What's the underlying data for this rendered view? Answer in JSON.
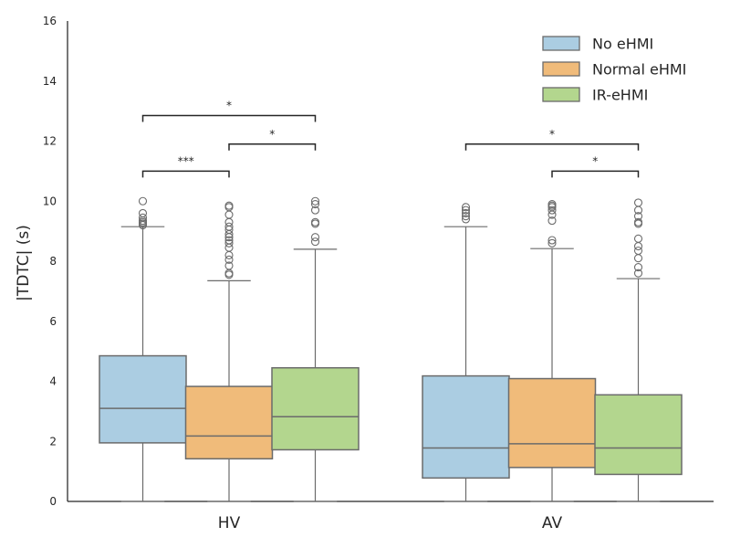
{
  "chart_data": {
    "type": "box",
    "title": "",
    "xlabel": "",
    "ylabel": "|TDTC| (s)",
    "ylim": [
      0,
      16
    ],
    "yticks": [
      0,
      2,
      4,
      6,
      8,
      10,
      12,
      14,
      16
    ],
    "grid": false,
    "legend_position": "top-right",
    "categories": [
      "HV",
      "AV"
    ],
    "series": [
      {
        "name": "No eHMI",
        "color": "#abcde2",
        "boxes": [
          {
            "category": "HV",
            "whisker_low": 0.0,
            "q1": 1.95,
            "median": 3.1,
            "q3": 4.85,
            "whisker_high": 9.15,
            "outliers": [
              9.2,
              9.25,
              9.3,
              9.35,
              9.45,
              9.6,
              10.0
            ]
          },
          {
            "category": "AV",
            "whisker_low": 0.0,
            "q1": 0.78,
            "median": 1.78,
            "q3": 4.18,
            "whisker_high": 9.15,
            "outliers": [
              9.4,
              9.5,
              9.6,
              9.7,
              9.8
            ]
          }
        ]
      },
      {
        "name": "Normal eHMI",
        "color": "#f0bb7a",
        "boxes": [
          {
            "category": "HV",
            "whisker_low": 0.0,
            "q1": 1.42,
            "median": 2.18,
            "q3": 3.83,
            "whisker_high": 7.35,
            "outliers": [
              7.55,
              7.6,
              7.85,
              8.05,
              8.2,
              8.45,
              8.6,
              8.7,
              8.8,
              8.9,
              9.05,
              9.15,
              9.3,
              9.55,
              9.8,
              9.85
            ]
          },
          {
            "category": "AV",
            "whisker_low": 0.0,
            "q1": 1.13,
            "median": 1.92,
            "q3": 4.09,
            "whisker_high": 8.42,
            "outliers": [
              8.6,
              8.7,
              9.35,
              9.55,
              9.7,
              9.8,
              9.85,
              9.9
            ]
          }
        ]
      },
      {
        "name": "IR-eHMI",
        "color": "#b3d68e",
        "boxes": [
          {
            "category": "HV",
            "whisker_low": 0.0,
            "q1": 1.72,
            "median": 2.82,
            "q3": 4.45,
            "whisker_high": 8.4,
            "outliers": [
              8.65,
              8.8,
              9.25,
              9.3,
              9.7,
              9.9,
              10.0
            ]
          },
          {
            "category": "AV",
            "whisker_low": 0.0,
            "q1": 0.9,
            "median": 1.78,
            "q3": 3.55,
            "whisker_high": 7.42,
            "outliers": [
              7.6,
              7.8,
              8.1,
              8.35,
              8.5,
              8.75,
              9.25,
              9.3,
              9.5,
              9.7,
              9.95
            ]
          }
        ]
      }
    ],
    "annotations": [
      {
        "category": "HV",
        "from": "No eHMI",
        "to": "Normal eHMI",
        "y": 11.0,
        "label": "***"
      },
      {
        "category": "HV",
        "from": "Normal eHMI",
        "to": "IR-eHMI",
        "y": 11.9,
        "label": "*"
      },
      {
        "category": "HV",
        "from": "No eHMI",
        "to": "IR-eHMI",
        "y": 12.85,
        "label": "*"
      },
      {
        "category": "AV",
        "from": "Normal eHMI",
        "to": "IR-eHMI",
        "y": 11.0,
        "label": "*"
      },
      {
        "category": "AV",
        "from": "No eHMI",
        "to": "IR-eHMI",
        "y": 11.9,
        "label": "*"
      }
    ]
  }
}
